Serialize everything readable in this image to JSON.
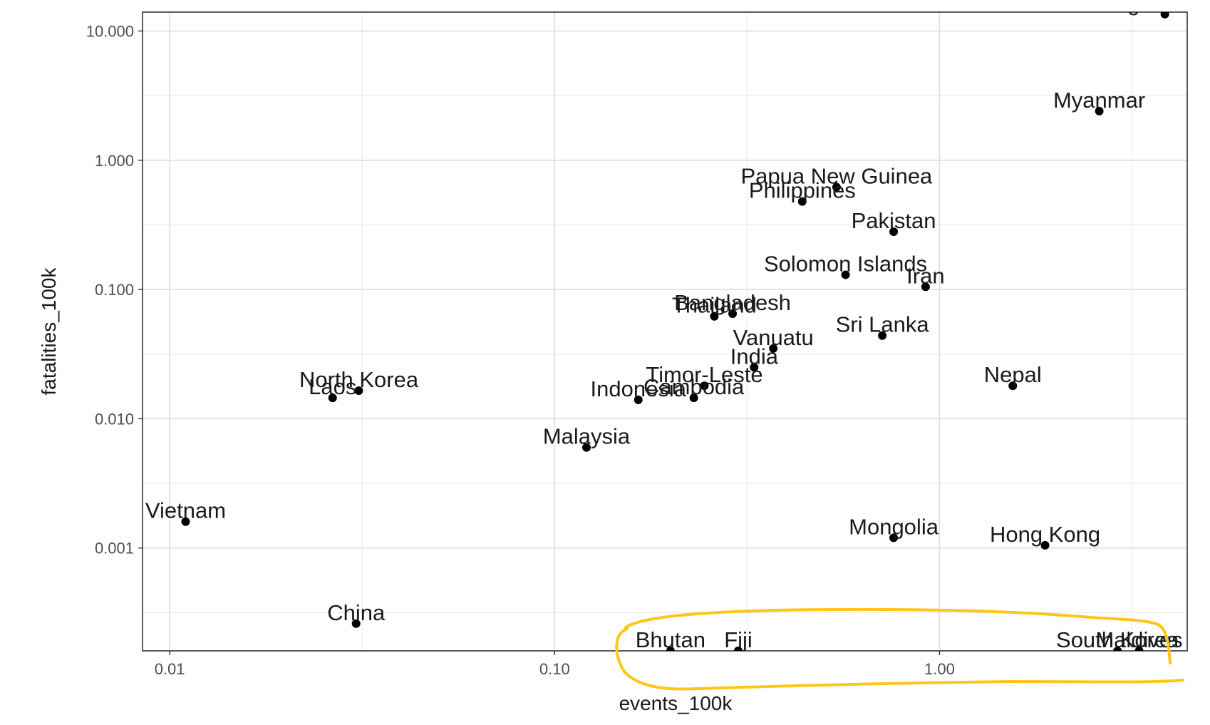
{
  "chart_data": {
    "type": "scatter",
    "title": "",
    "xlabel": "events_100k",
    "ylabel": "fatalities_100k",
    "x_scale": "log10",
    "y_scale": "log10",
    "xlim": [
      0.0085,
      4.4
    ],
    "ylim": [
      0.00016,
      14
    ],
    "grid": true,
    "x_ticks": [
      {
        "value": 0.01,
        "label": "0.01"
      },
      {
        "value": 0.1,
        "label": "0.10"
      },
      {
        "value": 1,
        "label": "1.00"
      }
    ],
    "y_ticks": [
      {
        "value": 0.001,
        "label": "0.001"
      },
      {
        "value": 0.01,
        "label": "0.010"
      },
      {
        "value": 0.1,
        "label": "0.100"
      },
      {
        "value": 1,
        "label": "1.000"
      },
      {
        "value": 10,
        "label": "10.000"
      }
    ],
    "points": [
      {
        "label": "Afghanistan",
        "x": 3.85,
        "y": 13.5
      },
      {
        "label": "Myanmar",
        "x": 2.6,
        "y": 2.4
      },
      {
        "label": "Papua New Guinea",
        "x": 0.54,
        "y": 0.62
      },
      {
        "label": "Philippines",
        "x": 0.44,
        "y": 0.48
      },
      {
        "label": "Pakistan",
        "x": 0.76,
        "y": 0.28
      },
      {
        "label": "Solomon Islands",
        "x": 0.57,
        "y": 0.13
      },
      {
        "label": "Iran",
        "x": 0.92,
        "y": 0.105
      },
      {
        "label": "Bangladesh",
        "x": 0.29,
        "y": 0.065
      },
      {
        "label": "Thailand",
        "x": 0.26,
        "y": 0.062
      },
      {
        "label": "Sri Lanka",
        "x": 0.71,
        "y": 0.044
      },
      {
        "label": "Vanuatu",
        "x": 0.37,
        "y": 0.035
      },
      {
        "label": "India",
        "x": 0.33,
        "y": 0.025
      },
      {
        "label": "Nepal",
        "x": 1.55,
        "y": 0.018
      },
      {
        "label": "Timor-Leste",
        "x": 0.245,
        "y": 0.018
      },
      {
        "label": "Cambodia",
        "x": 0.23,
        "y": 0.0145
      },
      {
        "label": "Indonesia",
        "x": 0.165,
        "y": 0.014
      },
      {
        "label": "North Korea",
        "x": 0.031,
        "y": 0.0165
      },
      {
        "label": "Laos",
        "x": 0.0265,
        "y": 0.0145
      },
      {
        "label": "Malaysia",
        "x": 0.121,
        "y": 0.006
      },
      {
        "label": "Vietnam",
        "x": 0.011,
        "y": 0.0016
      },
      {
        "label": "Mongolia",
        "x": 0.76,
        "y": 0.0012
      },
      {
        "label": "Hong Kong",
        "x": 1.88,
        "y": 0.00105
      },
      {
        "label": "China",
        "x": 0.0305,
        "y": 0.00026
      },
      {
        "label": "Bhutan",
        "x": 0.2,
        "y": 0.00016
      },
      {
        "label": "Fiji",
        "x": 0.3,
        "y": 0.00016
      },
      {
        "label": "South Korea",
        "x": 2.9,
        "y": 0.00016
      },
      {
        "label": "Maldives",
        "x": 3.3,
        "y": 0.00016
      }
    ]
  },
  "annotation": {
    "color": "#ffc61a"
  }
}
